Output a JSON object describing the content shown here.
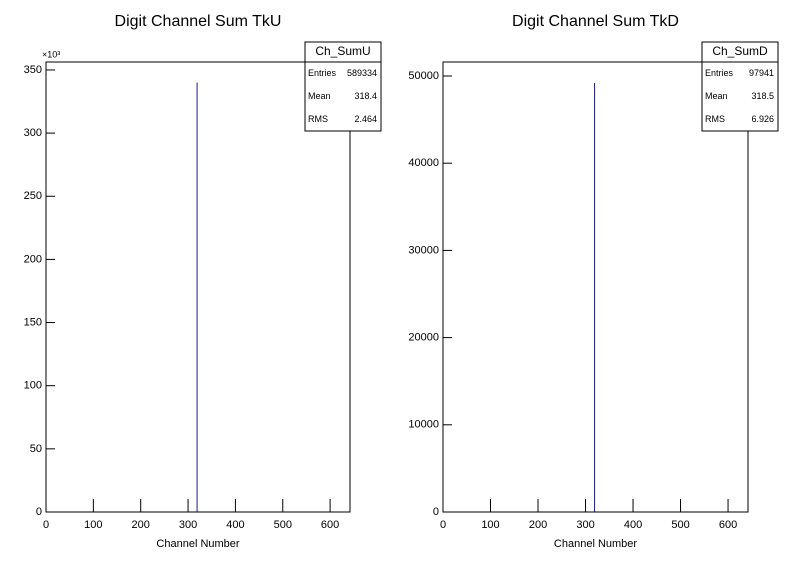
{
  "chart_data": [
    {
      "type": "histogram",
      "title": "Digit Channel Sum TkU",
      "x_label": "Channel Number",
      "y_multiplier": "×10³",
      "bins": [
        318,
        320
      ],
      "values": [
        340
      ],
      "color": "#1c1c80",
      "xlim": [
        0,
        642
      ],
      "xticks": [
        0,
        100,
        200,
        300,
        400,
        500,
        600
      ],
      "ylim": [
        0,
        356.3
      ],
      "yticks": [
        0,
        50,
        100,
        150,
        200,
        250,
        300,
        350
      ],
      "stats": {
        "name": "Ch_SumU",
        "rows": [
          [
            "Entries",
            589334
          ],
          [
            "Mean",
            318.4
          ],
          [
            "RMS",
            2.464
          ]
        ]
      }
    },
    {
      "type": "histogram",
      "title": "Digit Channel Sum TkD",
      "x_label": "Channel Number",
      "bins": [
        318,
        320
      ],
      "values": [
        49200
      ],
      "color": "#1c1c80",
      "xlim": [
        0,
        642
      ],
      "xticks": [
        0,
        100,
        200,
        300,
        400,
        500,
        600
      ],
      "ylim": [
        0,
        51606
      ],
      "yticks": [
        0,
        10000,
        20000,
        30000,
        40000,
        50000
      ],
      "stats": {
        "name": "Ch_SumD",
        "rows": [
          [
            "Entries",
            97941
          ],
          [
            "Mean",
            318.5
          ],
          [
            "RMS",
            6.926
          ]
        ]
      }
    }
  ]
}
